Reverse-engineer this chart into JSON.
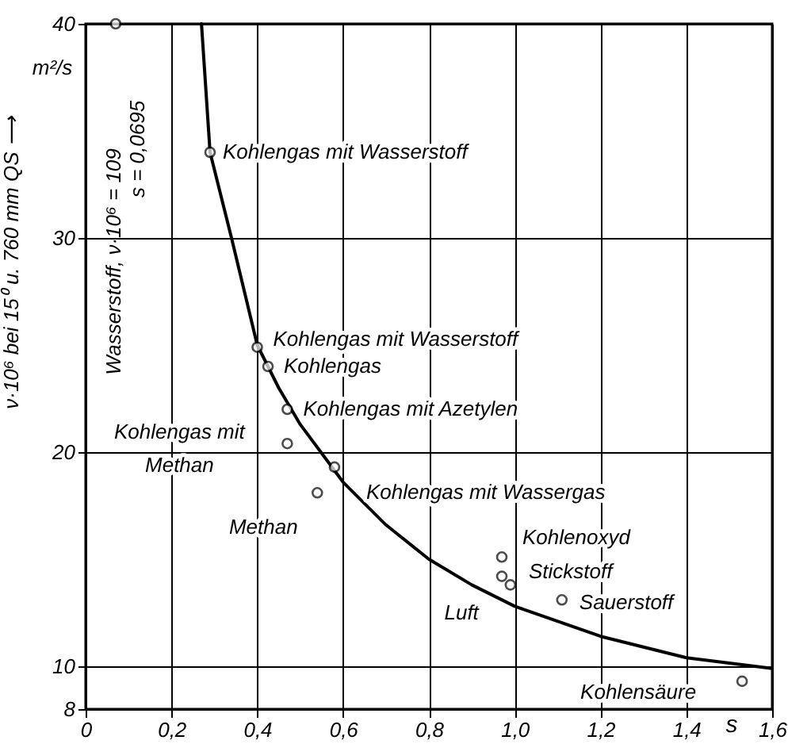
{
  "chart_data": {
    "type": "scatter",
    "xlabel": "s",
    "ylabel": "ν·10⁶ bei 15⁰ u. 760 mm QS ⟶",
    "xlim": [
      0,
      1.6
    ],
    "ylim": [
      8,
      40
    ],
    "xticks": [
      0,
      {
        "value": 0.2,
        "label": "0,2"
      },
      {
        "value": 0.4,
        "label": "0,4"
      },
      {
        "value": 0.6,
        "label": "0,6"
      },
      {
        "value": 0.8,
        "label": "0,8"
      },
      {
        "value": 1.0,
        "label": "1,0"
      },
      {
        "value": 1.2,
        "label": "1,2"
      },
      {
        "value": 1.4,
        "label": "1,4"
      },
      {
        "value": 1.6,
        "label": "1,6"
      }
    ],
    "yticks": [
      8,
      10,
      20,
      30,
      40
    ],
    "grid": true,
    "series": [
      {
        "type": "line",
        "color": "#000000",
        "line_style": "solid",
        "marker": "none",
        "x": [
          0.27,
          0.29,
          0.34,
          0.4,
          0.45,
          0.5,
          0.6,
          0.7,
          0.8,
          0.9,
          1.0,
          1.2,
          1.4,
          1.6
        ],
        "values": [
          40,
          34,
          30,
          25,
          23,
          21.3,
          18.6,
          16.6,
          15.0,
          13.8,
          12.8,
          11.4,
          10.4,
          9.9
        ]
      },
      {
        "type": "scatter",
        "color": "#000000",
        "marker": "circle",
        "x": [
          0.07,
          0.29,
          0.4,
          0.425,
          0.47,
          0.47,
          0.54,
          0.58,
          0.97,
          0.97,
          0.99,
          1.11,
          1.53
        ],
        "values": [
          40,
          34,
          24.9,
          24,
          22,
          20.4,
          18.1,
          19.3,
          15.1,
          14.2,
          13.8,
          13.1,
          9.3
        ]
      }
    ],
    "annotations": [
      {
        "text": "Kohlengas mit Wasserstoff",
        "x": 0.29,
        "y": 34
      },
      {
        "text": "Kohlengas mit Wasserstoff",
        "x": 0.4,
        "y": 24.9
      },
      {
        "text": "Kohlengas",
        "x": 0.425,
        "y": 24
      },
      {
        "text": "Kohlengas mit Azetylen",
        "x": 0.47,
        "y": 22
      },
      {
        "text": "Kohlengas mit\nMethan",
        "x": 0.47,
        "y": 20.4
      },
      {
        "text": "Methan",
        "x": 0.54,
        "y": 18.1
      },
      {
        "text": "Kohlengas mit Wassergas",
        "x": 0.58,
        "y": 19.3
      },
      {
        "text": "Kohlenoxyd",
        "x": 0.97,
        "y": 15.1
      },
      {
        "text": "Stickstoff",
        "x": 0.97,
        "y": 14.2
      },
      {
        "text": "Luft",
        "x": 0.99,
        "y": 13.8
      },
      {
        "text": "Sauerstoff",
        "x": 1.11,
        "y": 13.1
      },
      {
        "text": "Kohlensäure",
        "x": 1.53,
        "y": 9.3
      },
      "m²/s",
      "Wasserstoff, ν·10⁶ = 109",
      "s = 0,0695"
    ]
  }
}
